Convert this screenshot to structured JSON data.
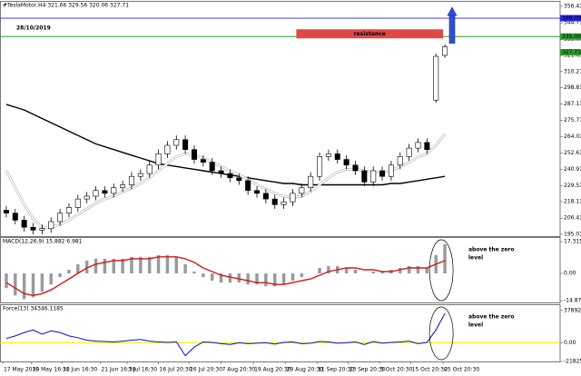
{
  "chart_data": [
    {
      "type": "candlestick",
      "title": "#TeslaMotor,H4 321.66 329.56 320.06 327.71",
      "annotation": "28/10/2019",
      "zone_label": "resistance",
      "open": [
        212,
        210,
        205,
        200,
        198,
        199,
        204,
        210,
        214,
        220,
        222,
        226,
        224,
        228,
        230,
        236,
        238,
        244,
        252,
        258,
        262,
        255,
        248,
        246,
        240,
        238,
        235,
        233,
        226,
        224,
        220,
        216,
        218,
        224,
        228,
        236,
        250,
        252,
        248,
        244,
        240,
        232,
        240,
        236,
        244,
        250,
        256,
        260,
        290,
        321.66
      ],
      "high": [
        215,
        213,
        208,
        203,
        202,
        207,
        213,
        217,
        223,
        225,
        229,
        229,
        231,
        233,
        239,
        241,
        247,
        255,
        261,
        265,
        265,
        258,
        251,
        249,
        243,
        241,
        238,
        236,
        229,
        227,
        223,
        221,
        227,
        231,
        239,
        253,
        255,
        255,
        251,
        247,
        243,
        243,
        243,
        247,
        253,
        259,
        263,
        263,
        323,
        329.56
      ],
      "low": [
        207,
        202,
        197,
        195,
        195,
        196,
        201,
        207,
        211,
        217,
        219,
        221,
        221,
        225,
        227,
        233,
        235,
        241,
        249,
        255,
        252,
        245,
        243,
        237,
        235,
        232,
        230,
        223,
        221,
        217,
        213,
        213,
        215,
        221,
        225,
        233,
        247,
        245,
        241,
        237,
        229,
        229,
        233,
        233,
        241,
        247,
        253,
        252,
        288,
        320.06
      ],
      "close": [
        210,
        205,
        200,
        198,
        199,
        204,
        210,
        214,
        220,
        222,
        226,
        224,
        228,
        230,
        236,
        238,
        244,
        252,
        258,
        262,
        255,
        248,
        246,
        240,
        238,
        235,
        233,
        226,
        224,
        220,
        216,
        218,
        224,
        228,
        236,
        250,
        252,
        248,
        244,
        240,
        232,
        240,
        236,
        244,
        250,
        256,
        260,
        255,
        321,
        327.71
      ],
      "lines": [
        {
          "color": "#000000",
          "values": [
            287,
            285,
            283,
            280,
            277,
            274,
            271,
            268,
            265,
            262,
            259,
            257,
            255,
            253,
            251,
            249,
            247,
            245,
            244,
            243,
            242,
            241,
            240,
            239,
            238,
            237,
            236,
            235,
            234,
            233,
            232,
            231,
            231,
            230,
            230,
            230,
            230,
            230,
            230,
            230,
            230,
            230,
            230,
            231,
            231,
            232,
            233,
            234,
            235,
            236
          ]
        },
        {
          "color": "#ffffff",
          "values": [
            240,
            228,
            216,
            206,
            200,
            200,
            202,
            205,
            209,
            213,
            217,
            220,
            222,
            225,
            228,
            231,
            235,
            240,
            245,
            250,
            252,
            251,
            249,
            246,
            243,
            240,
            237,
            234,
            230,
            227,
            224,
            222,
            221,
            222,
            225,
            230,
            235,
            239,
            241,
            241,
            240,
            239,
            239,
            240,
            243,
            246,
            250,
            252,
            258,
            266
          ]
        }
      ],
      "hlines": [
        {
          "value": 348,
          "label": "348.00",
          "color": "#2828e0"
        },
        {
          "value": 335,
          "label": "335.00",
          "color": "#2e9a2e"
        }
      ],
      "xlim": [
        -0.5,
        49.5
      ],
      "xticks": [
        {
          "value": -0.4,
          "label": "17 May 2019"
        },
        {
          "value": 2.8,
          "label": "30 May 16:30"
        },
        {
          "value": 6.2,
          "label": "11 Jun 16:30"
        },
        {
          "value": 10.5,
          "label": "21 Jun 16:30"
        },
        {
          "value": 13.5,
          "label": "3 Jul 16:30"
        },
        {
          "value": 17.0,
          "label": "16 Jul 20:30"
        },
        {
          "value": 20.4,
          "label": "26 Jul 20:30"
        },
        {
          "value": 24.0,
          "label": "7 Aug 20:30"
        },
        {
          "value": 27.6,
          "label": "19 Aug 20:30"
        },
        {
          "value": 31.2,
          "label": "29 Aug 20:30"
        },
        {
          "value": 34.7,
          "label": "11 Sep 20:30"
        },
        {
          "value": 38.2,
          "label": "23 Sep 20:30"
        },
        {
          "value": 41.7,
          "label": "3 Oct 20:30"
        },
        {
          "value": 45.2,
          "label": "15 Oct 20:30"
        },
        {
          "value": 48.8,
          "label": "25 Oct 20:30"
        }
      ],
      "ylim": [
        193.7,
        359.6
      ],
      "yticks": [
        356.41,
        344.71,
        {
          "value": 333,
          "label": "333.00"
        },
        321.65,
        310.21,
        298.81,
        287.11,
        275.71,
        264.01,
        252.61,
        240.91,
        229.51,
        218.11,
        206.41,
        195.01
      ]
    },
    {
      "type": "macd",
      "title": "MACD(12,26,9) 15.882 6.981",
      "annotation": [
        "above the zero",
        "level"
      ],
      "series": [
        {
          "type": "bar",
          "color": "#9a9a9a",
          "values": [
            -8,
            -12,
            -14,
            -13,
            -10,
            -6,
            -2,
            2,
            5,
            7,
            8,
            8,
            8,
            8,
            9,
            9,
            9,
            10,
            10,
            9,
            5,
            1,
            -2,
            -4,
            -5,
            -5,
            -5,
            -6,
            -6,
            -7,
            -7,
            -6,
            -4,
            -2,
            0,
            3,
            4,
            4,
            3,
            2,
            0,
            1,
            1,
            2,
            3,
            4,
            4,
            3,
            10,
            15.882
          ]
        },
        {
          "type": "line",
          "color": "#d01818",
          "values": [
            -5,
            -8,
            -11,
            -12,
            -11,
            -9,
            -6,
            -3,
            0,
            3,
            5,
            6,
            7,
            7,
            8,
            8,
            8,
            9,
            9,
            9,
            8,
            6,
            3,
            1,
            -1,
            -2,
            -3,
            -4,
            -5,
            -5,
            -6,
            -6,
            -5,
            -4,
            -3,
            -1,
            1,
            2,
            3,
            3,
            2,
            2,
            1,
            1,
            2,
            3,
            3,
            3,
            5,
            6.981
          ]
        }
      ],
      "ylim": [
        -15.8,
        19.3
      ],
      "yticks": [
        17.315,
        {
          "value": 0,
          "label": "0.00"
        },
        -14.875
      ]
    },
    {
      "type": "line",
      "title": "Force(13) 34346.1185",
      "annotation": [
        "above the zero",
        "level"
      ],
      "series": [
        {
          "type": "line",
          "color": "#0a0ad0",
          "values": [
            5000,
            8000,
            12000,
            15000,
            10000,
            14000,
            12000,
            8000,
            6000,
            3000,
            2000,
            1500,
            1000,
            2000,
            3000,
            4000,
            2000,
            1000,
            500,
            1000,
            -15000,
            -5000,
            1000,
            500,
            -1000,
            -2000,
            0,
            -1000,
            -500,
            0,
            -1500,
            500,
            1000,
            -1000,
            -500,
            1500,
            1000,
            -500,
            0,
            1000,
            -2000,
            1500,
            -500,
            500,
            1000,
            2000,
            -1000,
            500,
            15000,
            34346.1185
          ]
        }
      ],
      "zero_line_color": "#f0f000",
      "ylim": [
        -21825.54,
        44000
      ],
      "yticks": [
        37892.17,
        {
          "value": 0,
          "label": "0.00"
        },
        -21825.54
      ]
    }
  ]
}
